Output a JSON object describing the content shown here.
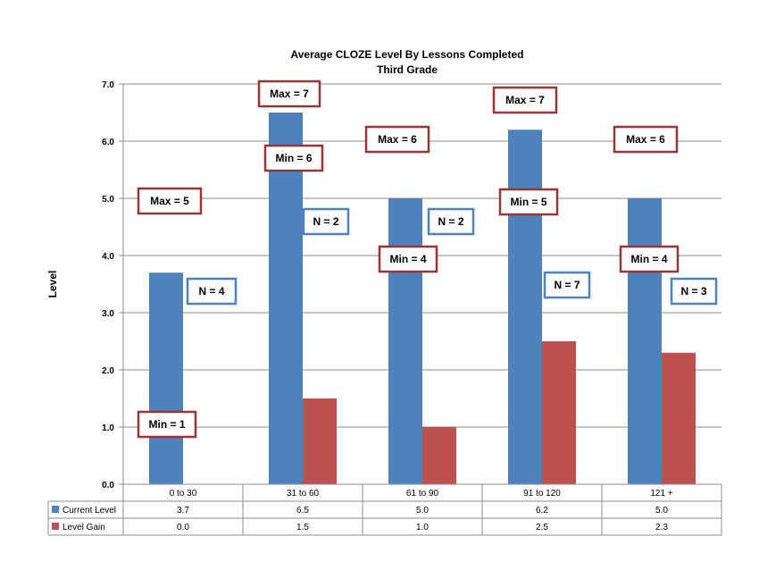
{
  "chart_data": {
    "type": "bar",
    "title": "Average CLOZE Level By Lessons Completed",
    "subtitle": "Third Grade",
    "ylabel": "Level",
    "xlabel": "",
    "ylim": [
      0,
      7
    ],
    "yticks": [
      "0.0",
      "1.0",
      "2.0",
      "3.0",
      "4.0",
      "5.0",
      "6.0",
      "7.0"
    ],
    "grid": true,
    "legend": "data-table",
    "categories": [
      "0 to 30",
      "31 to 60",
      "61 to 90",
      "91 to 120",
      "121 +"
    ],
    "series": [
      {
        "name": "Current Level",
        "values": [
          3.7,
          6.5,
          5.0,
          6.2,
          5.0
        ],
        "labels": [
          "3.7",
          "6.5",
          "5.0",
          "6.2",
          "5.0"
        ],
        "color": "#4f81bd"
      },
      {
        "name": "Level Gain",
        "values": [
          0.0,
          1.5,
          1.0,
          2.5,
          2.3
        ],
        "labels": [
          "0.0",
          "1.5",
          "1.0",
          "2.5",
          "2.3"
        ],
        "color": "#c0504d"
      }
    ],
    "annotations": [
      {
        "text": "Max =  5",
        "group": 0,
        "border": "#953735"
      },
      {
        "text": "Min = 1",
        "group": 0,
        "border": "#953735"
      },
      {
        "text": "N = 4",
        "group": 0,
        "border": "#4f81bd"
      },
      {
        "text": "Max =  7",
        "group": 1,
        "border": "#953735"
      },
      {
        "text": "Min = 6",
        "group": 1,
        "border": "#953735"
      },
      {
        "text": "N = 2",
        "group": 1,
        "border": "#4f81bd"
      },
      {
        "text": "Max =  6",
        "group": 2,
        "border": "#953735"
      },
      {
        "text": "Min = 4",
        "group": 2,
        "border": "#953735"
      },
      {
        "text": "N = 2",
        "group": 2,
        "border": "#4f81bd"
      },
      {
        "text": "Max =  7",
        "group": 3,
        "border": "#953735"
      },
      {
        "text": "Min = 5",
        "group": 3,
        "border": "#953735"
      },
      {
        "text": "N = 7",
        "group": 3,
        "border": "#4f81bd"
      },
      {
        "text": "Max =  6",
        "group": 4,
        "border": "#953735"
      },
      {
        "text": "Min = 4",
        "group": 4,
        "border": "#953735"
      },
      {
        "text": "N = 3",
        "group": 4,
        "border": "#4f81bd"
      }
    ]
  }
}
